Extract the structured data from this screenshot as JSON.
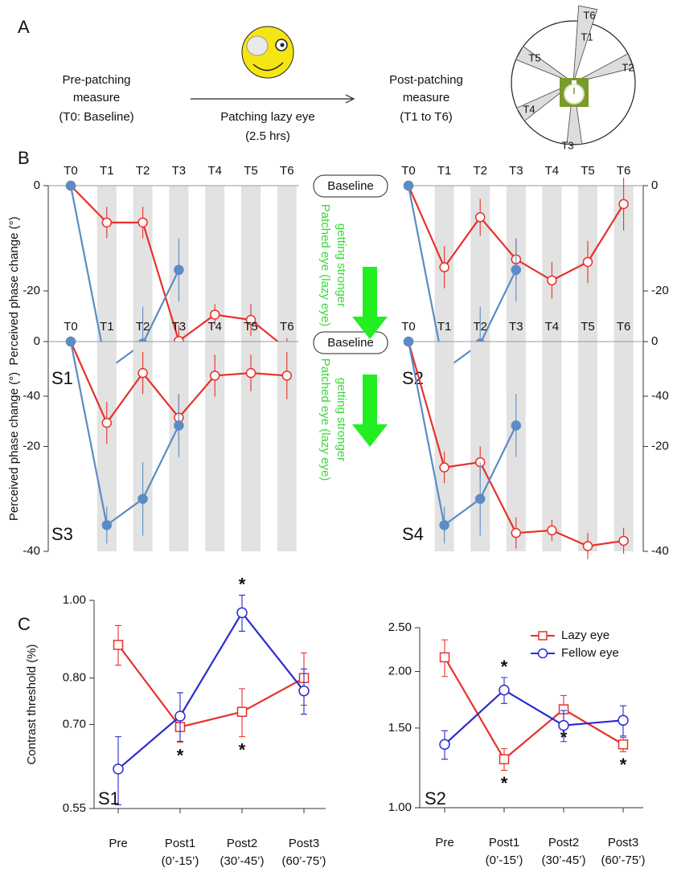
{
  "panel_labels": [
    "A",
    "B",
    "C"
  ],
  "panel_a": {
    "pre": [
      "Pre-patching",
      "measure",
      "(T0: Baseline)"
    ],
    "arrow": [
      "Patching lazy eye",
      "(2.5 hrs)"
    ],
    "post": [
      "Post-patching",
      "measure",
      "(T1 to T6)"
    ],
    "clock_labels": [
      "T1",
      "T2",
      "T3",
      "T4",
      "T5",
      "T6"
    ]
  },
  "panel_b": {
    "baseline_label": "Baseline",
    "arrow_label": [
      "Patched eye (lazy eye)",
      "getting stronger"
    ]
  },
  "chart_data": [
    {
      "type": "line",
      "label": "S1",
      "y_label": "Perceived phase change (°)",
      "shaded": true,
      "categories": [
        "T0",
        "T1",
        "T2",
        "T3",
        "T4",
        "T5",
        "T6"
      ],
      "ylim": [
        -40,
        0
      ],
      "yticks": [
        -40,
        -20,
        0
      ],
      "series": [
        {
          "color": "#e8312a",
          "marker": "circle",
          "filled": false,
          "values": [
            0,
            -7,
            -7,
            -29.5,
            -24.5,
            -25.5,
            -31
          ],
          "errors": [
            null,
            3,
            3,
            3,
            2,
            3,
            2
          ]
        },
        {
          "color": "#5b8cc5",
          "marker": "circle",
          "filled": true,
          "values": [
            0,
            -35,
            -30,
            -16,
            null,
            null,
            null
          ],
          "errors": [
            null,
            3.5,
            7,
            6,
            null,
            null,
            null
          ]
        }
      ]
    },
    {
      "type": "line",
      "label": "S2",
      "shaded": true,
      "categories": [
        "T0",
        "T1",
        "T2",
        "T3",
        "T4",
        "T5",
        "T6"
      ],
      "ylim": [
        -40,
        0
      ],
      "yticks": [
        -40,
        -20,
        0
      ],
      "series": [
        {
          "color": "#e8312a",
          "marker": "circle",
          "filled": false,
          "values": [
            0,
            -15.5,
            -6,
            -14,
            -18,
            -14.5,
            -3.5
          ],
          "errors": [
            null,
            4,
            3.5,
            4,
            3.5,
            4,
            5
          ]
        },
        {
          "color": "#5b8cc5",
          "marker": "circle",
          "filled": true,
          "values": [
            0,
            -35,
            -30,
            -16,
            null,
            null,
            null
          ],
          "errors": [
            null,
            3.5,
            7,
            6,
            null,
            null,
            null
          ]
        }
      ]
    },
    {
      "type": "line",
      "label": "S3",
      "y_label": "Perceived phase change (°)",
      "shaded": true,
      "categories": [
        "T0",
        "T1",
        "T2",
        "T3",
        "T4",
        "T5",
        "T6"
      ],
      "ylim": [
        -40,
        0
      ],
      "yticks": [
        -40,
        -20,
        0
      ],
      "series": [
        {
          "color": "#e8312a",
          "marker": "circle",
          "filled": false,
          "values": [
            0,
            -15.5,
            -6,
            -14.5,
            -6.5,
            -6,
            -6.5
          ],
          "errors": [
            null,
            4,
            4,
            4.5,
            4,
            3.5,
            4.5
          ]
        },
        {
          "color": "#5b8cc5",
          "marker": "circle",
          "filled": true,
          "values": [
            0,
            -35,
            -30,
            -16,
            null,
            null,
            null
          ],
          "errors": [
            null,
            3.5,
            7,
            6,
            null,
            null,
            null
          ]
        }
      ]
    },
    {
      "type": "line",
      "label": "S4",
      "shaded": true,
      "categories": [
        "T0",
        "T1",
        "T2",
        "T3",
        "T4",
        "T5",
        "T6"
      ],
      "ylim": [
        -40,
        0
      ],
      "yticks": [
        -40,
        -20,
        0
      ],
      "series": [
        {
          "color": "#e8312a",
          "marker": "circle",
          "filled": false,
          "values": [
            0,
            -24,
            -23,
            -36.5,
            -36,
            -39,
            -38
          ],
          "errors": [
            null,
            3,
            3,
            3,
            2,
            2.5,
            2.5
          ]
        },
        {
          "color": "#5b8cc5",
          "marker": "circle",
          "filled": true,
          "values": [
            0,
            -35,
            -30,
            -16,
            null,
            null,
            null
          ],
          "errors": [
            null,
            3.5,
            7,
            6,
            null,
            null,
            null
          ]
        }
      ]
    },
    {
      "type": "line",
      "label": "S1",
      "y_label": "Contrast threshold (%)",
      "log_y": true,
      "categories": [
        "Pre",
        "Post1",
        "Post2",
        "Post3"
      ],
      "category_notes": [
        null,
        "(0’-15’)",
        "(30’-45’)",
        "(60’-75’)"
      ],
      "ylim": [
        0.55,
        1.0
      ],
      "yticks": [
        {
          "value": 0.55,
          "label": "0.55"
        },
        {
          "value": 0.7,
          "label": "0.70"
        },
        {
          "value": 0.8,
          "label": "0.80"
        },
        {
          "value": 1.0,
          "label": "1.00"
        }
      ],
      "series": [
        {
          "color": "#e8312a",
          "marker": "square",
          "filled": false,
          "values": [
            0.88,
            0.695,
            0.726,
            0.8
          ],
          "errors": [
            0.05,
            0.03,
            0.05,
            0.06
          ],
          "stars": [
            null,
            "*",
            "*",
            null
          ]
        },
        {
          "color": "#2b2bd0",
          "marker": "circle",
          "filled": false,
          "values": [
            0.616,
            0.717,
            0.965,
            0.771
          ],
          "errors": [
            0.06,
            0.05,
            0.05,
            0.05
          ],
          "stars": [
            null,
            null,
            "*",
            null
          ]
        }
      ]
    },
    {
      "type": "line",
      "label": "S2",
      "log_y": true,
      "legend": "upper right",
      "categories": [
        "Pre",
        "Post1",
        "Post2",
        "Post3"
      ],
      "category_notes": [
        null,
        "(0’-15’)",
        "(30’-45’)",
        "(60’-75’)"
      ],
      "ylim": [
        1.0,
        2.5
      ],
      "yticks": [
        {
          "value": 1.0,
          "label": "1.00"
        },
        {
          "value": 1.5,
          "label": "1.50"
        },
        {
          "value": 2.0,
          "label": "2.00"
        },
        {
          "value": 2.5,
          "label": "2.50"
        }
      ],
      "series": [
        {
          "name": "Lazy eye",
          "color": "#e8312a",
          "marker": "square",
          "filled": false,
          "values": [
            2.15,
            1.28,
            1.65,
            1.38
          ],
          "errors": [
            0.2,
            0.07,
            0.12,
            0.05
          ],
          "stars": [
            null,
            "*",
            "*",
            "*"
          ]
        },
        {
          "name": "Fellow eye",
          "color": "#2b2bd0",
          "marker": "circle",
          "filled": false,
          "values": [
            1.38,
            1.82,
            1.52,
            1.56
          ],
          "errors": [
            0.1,
            0.12,
            0.12,
            0.12
          ],
          "stars": [
            null,
            "*",
            null,
            null
          ]
        }
      ]
    }
  ]
}
